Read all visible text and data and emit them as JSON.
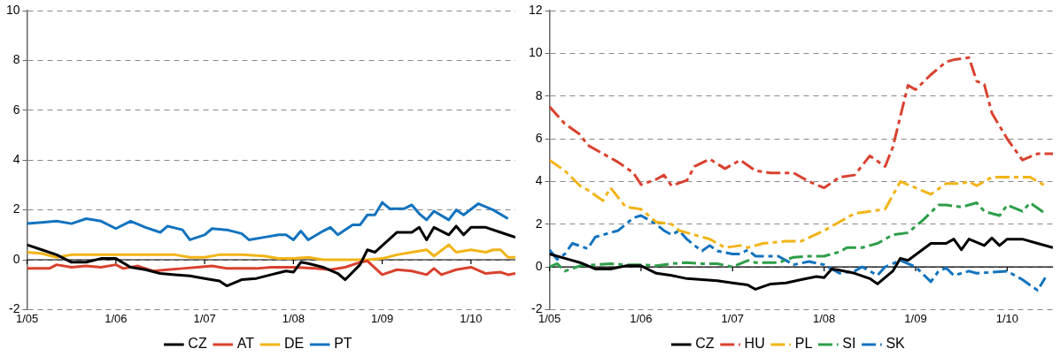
{
  "chart_data": [
    {
      "type": "line",
      "xlim": [
        "2005-01",
        "2010-07"
      ],
      "xticks": [
        {
          "value": "2005-01",
          "label": "1/05"
        },
        {
          "value": "2006-01",
          "label": "1/06"
        },
        {
          "value": "2007-01",
          "label": "1/07"
        },
        {
          "value": "2008-01",
          "label": "1/08"
        },
        {
          "value": "2009-01",
          "label": "1/09"
        },
        {
          "value": "2010-01",
          "label": "1/10"
        }
      ],
      "ylim": [
        -2,
        10
      ],
      "yticks": [
        -2,
        0,
        2,
        4,
        6,
        8,
        10
      ],
      "grid": "y",
      "legend": "bottom",
      "line_style": "solid",
      "marker": "none",
      "ref_lines": [
        {
          "axis": "y",
          "value": 0,
          "color": "#000000"
        }
      ],
      "series": [
        {
          "name": "CZ",
          "color": "#000000",
          "x": [
            "2005-01",
            "2005-03",
            "2005-05",
            "2005-07",
            "2005-09",
            "2005-11",
            "2006-01",
            "2006-03",
            "2006-05",
            "2006-07",
            "2006-09",
            "2006-11",
            "2007-01",
            "2007-03",
            "2007-04",
            "2007-06",
            "2007-08",
            "2007-10",
            "2007-12",
            "2008-01",
            "2008-02",
            "2008-03",
            "2008-05",
            "2008-07",
            "2008-08",
            "2008-10",
            "2008-11",
            "2008-12",
            "2009-03",
            "2009-05",
            "2009-06",
            "2009-07",
            "2009-08",
            "2009-10",
            "2009-11",
            "2009-12",
            "2010-01",
            "2010-03",
            "2010-05",
            "2010-07"
          ],
          "values": [
            0.6,
            0.4,
            0.2,
            -0.1,
            -0.1,
            0.05,
            0.05,
            -0.3,
            -0.4,
            -0.55,
            -0.6,
            -0.65,
            -0.75,
            -0.85,
            -1.05,
            -0.8,
            -0.75,
            -0.6,
            -0.45,
            -0.5,
            -0.1,
            -0.15,
            -0.3,
            -0.55,
            -0.8,
            -0.2,
            0.4,
            0.3,
            1.1,
            1.1,
            1.3,
            0.8,
            1.3,
            1.0,
            1.35,
            1.0,
            1.3,
            1.3,
            1.1,
            0.9
          ]
        },
        {
          "name": "AT",
          "color": "#d9412f",
          "x": [
            "2005-01",
            "2005-04",
            "2005-05",
            "2005-07",
            "2005-09",
            "2005-11",
            "2006-01",
            "2006-02",
            "2006-04",
            "2006-06",
            "2006-08",
            "2006-10",
            "2006-12",
            "2007-02",
            "2007-04",
            "2007-06",
            "2007-08",
            "2007-10",
            "2008-01",
            "2008-04",
            "2008-06",
            "2008-08",
            "2008-10",
            "2008-11",
            "2009-01",
            "2009-03",
            "2009-05",
            "2009-07",
            "2009-08",
            "2009-09",
            "2009-11",
            "2010-01",
            "2010-03",
            "2010-05",
            "2010-06",
            "2010-07"
          ],
          "values": [
            -0.35,
            -0.35,
            -0.2,
            -0.3,
            -0.25,
            -0.3,
            -0.2,
            -0.35,
            -0.25,
            -0.45,
            -0.4,
            -0.35,
            -0.3,
            -0.25,
            -0.35,
            -0.35,
            -0.35,
            -0.3,
            -0.3,
            -0.35,
            -0.4,
            -0.3,
            -0.1,
            -0.05,
            -0.6,
            -0.4,
            -0.45,
            -0.6,
            -0.35,
            -0.6,
            -0.4,
            -0.3,
            -0.55,
            -0.5,
            -0.6,
            -0.55
          ]
        },
        {
          "name": "DE",
          "color": "#f2b417",
          "x": [
            "2005-01",
            "2005-03",
            "2005-05",
            "2005-07",
            "2005-09",
            "2005-11",
            "2006-01",
            "2006-03",
            "2006-05",
            "2006-07",
            "2006-09",
            "2006-11",
            "2007-01",
            "2007-03",
            "2007-06",
            "2007-09",
            "2007-11",
            "2008-01",
            "2008-03",
            "2008-05",
            "2008-07",
            "2008-09",
            "2008-11",
            "2009-01",
            "2009-03",
            "2009-05",
            "2009-07",
            "2009-08",
            "2009-10",
            "2009-11",
            "2010-01",
            "2010-03",
            "2010-04",
            "2010-05",
            "2010-06",
            "2010-07"
          ],
          "values": [
            0.3,
            0.25,
            0.1,
            0.2,
            0.2,
            0.2,
            0.2,
            0.2,
            0.2,
            0.2,
            0.2,
            0.1,
            0.1,
            0.2,
            0.2,
            0.15,
            0.05,
            0.05,
            0.1,
            0,
            0,
            0,
            0,
            0.05,
            0.2,
            0.3,
            0.4,
            0.15,
            0.6,
            0.3,
            0.4,
            0.3,
            0.4,
            0.4,
            0.1,
            0.1
          ]
        },
        {
          "name": "PT",
          "color": "#1273be",
          "x": [
            "2005-01",
            "2005-03",
            "2005-05",
            "2005-07",
            "2005-09",
            "2005-11",
            "2006-01",
            "2006-03",
            "2006-05",
            "2006-07",
            "2006-08",
            "2006-10",
            "2006-11",
            "2007-01",
            "2007-02",
            "2007-04",
            "2007-06",
            "2007-07",
            "2007-09",
            "2007-11",
            "2007-12",
            "2008-01",
            "2008-02",
            "2008-03",
            "2008-05",
            "2008-06",
            "2008-07",
            "2008-09",
            "2008-10",
            "2008-11",
            "2008-12",
            "2009-01",
            "2009-02",
            "2009-04",
            "2009-05",
            "2009-06",
            "2009-07",
            "2009-08",
            "2009-10",
            "2009-11",
            "2009-12",
            "2010-02",
            "2010-04",
            "2010-06"
          ],
          "values": [
            1.45,
            1.5,
            1.55,
            1.45,
            1.65,
            1.55,
            1.25,
            1.55,
            1.3,
            1.1,
            1.35,
            1.2,
            0.8,
            1.0,
            1.25,
            1.2,
            1.05,
            0.8,
            0.9,
            1.0,
            1.0,
            0.8,
            1.15,
            0.8,
            1.15,
            1.3,
            1.0,
            1.4,
            1.4,
            1.8,
            1.8,
            2.3,
            2.05,
            2.05,
            2.2,
            1.85,
            1.6,
            1.95,
            1.6,
            2.0,
            1.8,
            2.25,
            2.0,
            1.65
          ]
        }
      ]
    },
    {
      "type": "line",
      "xlim": [
        "2005-01",
        "2010-07"
      ],
      "xticks": [
        {
          "value": "2005-01",
          "label": "1/05"
        },
        {
          "value": "2006-01",
          "label": "1/06"
        },
        {
          "value": "2007-01",
          "label": "1/07"
        },
        {
          "value": "2008-01",
          "label": "1/08"
        },
        {
          "value": "2009-01",
          "label": "1/09"
        },
        {
          "value": "2010-01",
          "label": "1/10"
        }
      ],
      "ylim": [
        -2,
        12
      ],
      "yticks": [
        -2,
        0,
        2,
        4,
        6,
        8,
        10,
        12
      ],
      "grid": "y",
      "legend": "bottom",
      "marker": "none",
      "ref_lines": [
        {
          "axis": "y",
          "value": 0,
          "color": "#000000"
        }
      ],
      "series": [
        {
          "name": "CZ",
          "color": "#000000",
          "line_style": "solid",
          "x": [
            "2005-01",
            "2005-03",
            "2005-05",
            "2005-07",
            "2005-09",
            "2005-11",
            "2006-01",
            "2006-03",
            "2006-05",
            "2006-07",
            "2006-09",
            "2006-11",
            "2007-01",
            "2007-03",
            "2007-04",
            "2007-06",
            "2007-08",
            "2007-10",
            "2007-12",
            "2008-01",
            "2008-02",
            "2008-03",
            "2008-05",
            "2008-07",
            "2008-08",
            "2008-10",
            "2008-11",
            "2008-12",
            "2009-03",
            "2009-05",
            "2009-06",
            "2009-07",
            "2009-08",
            "2009-10",
            "2009-11",
            "2009-12",
            "2010-01",
            "2010-03",
            "2010-05",
            "2010-07"
          ],
          "values": [
            0.6,
            0.4,
            0.2,
            -0.1,
            -0.1,
            0.05,
            0.05,
            -0.3,
            -0.4,
            -0.55,
            -0.6,
            -0.65,
            -0.75,
            -0.85,
            -1.05,
            -0.8,
            -0.75,
            -0.6,
            -0.45,
            -0.5,
            -0.1,
            -0.15,
            -0.3,
            -0.55,
            -0.8,
            -0.2,
            0.4,
            0.3,
            1.1,
            1.1,
            1.3,
            0.8,
            1.3,
            1.0,
            1.35,
            1.0,
            1.3,
            1.3,
            1.1,
            0.9
          ]
        },
        {
          "name": "HU",
          "color": "#d9412f",
          "line_style": "dashed",
          "x": [
            "2005-01",
            "2005-03",
            "2005-05",
            "2005-06",
            "2005-08",
            "2005-10",
            "2005-12",
            "2006-01",
            "2006-03",
            "2006-04",
            "2006-05",
            "2006-07",
            "2006-08",
            "2006-10",
            "2006-12",
            "2007-02",
            "2007-04",
            "2007-06",
            "2007-09",
            "2007-11",
            "2008-01",
            "2008-03",
            "2008-05",
            "2008-07",
            "2008-09",
            "2008-10",
            "2008-12",
            "2009-01",
            "2009-03",
            "2009-05",
            "2009-06",
            "2009-08",
            "2009-09",
            "2009-10",
            "2009-11",
            "2010-01",
            "2010-03",
            "2010-05",
            "2010-07"
          ],
          "values": [
            7.5,
            6.7,
            6.2,
            5.7,
            5.3,
            4.9,
            4.4,
            3.85,
            4.1,
            4.3,
            3.8,
            4.05,
            4.7,
            5.05,
            4.6,
            5.0,
            4.5,
            4.4,
            4.4,
            4.0,
            3.7,
            4.2,
            4.3,
            5.2,
            4.7,
            5.6,
            8.5,
            8.3,
            9.0,
            9.6,
            9.7,
            9.8,
            8.7,
            8.55,
            7.2,
            6.0,
            5.0,
            5.3,
            5.3
          ]
        },
        {
          "name": "PL",
          "color": "#f2b417",
          "line_style": "dashed",
          "x": [
            "2005-01",
            "2005-03",
            "2005-05",
            "2005-06",
            "2005-08",
            "2005-09",
            "2005-11",
            "2006-01",
            "2006-03",
            "2006-05",
            "2006-06",
            "2006-08",
            "2006-10",
            "2006-12",
            "2007-02",
            "2007-03",
            "2007-05",
            "2007-08",
            "2007-10",
            "2008-01",
            "2008-03",
            "2008-05",
            "2008-07",
            "2008-09",
            "2008-11",
            "2009-01",
            "2009-03",
            "2009-05",
            "2009-07",
            "2009-08",
            "2009-09",
            "2009-11",
            "2010-02",
            "2010-04",
            "2010-06"
          ],
          "values": [
            5.0,
            4.5,
            3.8,
            3.6,
            3.1,
            3.7,
            2.8,
            2.7,
            2.1,
            2.0,
            1.7,
            1.5,
            1.3,
            0.9,
            1.0,
            0.9,
            1.1,
            1.2,
            1.2,
            1.7,
            2.1,
            2.5,
            2.6,
            2.7,
            4.0,
            3.7,
            3.4,
            3.9,
            3.9,
            4.0,
            3.8,
            4.2,
            4.2,
            4.2,
            3.8
          ]
        },
        {
          "name": "SI",
          "color": "#2e9e4a",
          "line_style": "dashed",
          "x": [
            "2005-01",
            "2005-02",
            "2005-03",
            "2005-05",
            "2005-07",
            "2005-09",
            "2005-11",
            "2006-01",
            "2006-03",
            "2006-05",
            "2006-07",
            "2006-09",
            "2006-11",
            "2007-01",
            "2007-03",
            "2007-04",
            "2007-07",
            "2007-09",
            "2007-11",
            "2008-01",
            "2008-03",
            "2008-04",
            "2008-06",
            "2008-08",
            "2008-10",
            "2008-12",
            "2009-02",
            "2009-04",
            "2009-05",
            "2009-07",
            "2009-09",
            "2009-10",
            "2009-12",
            "2010-01",
            "2010-03",
            "2010-04",
            "2010-06"
          ],
          "values": [
            0,
            0.15,
            -0.2,
            0.05,
            0.1,
            0.15,
            0.1,
            0.1,
            0.05,
            0.15,
            0.2,
            0.15,
            0.15,
            0,
            0.3,
            0.2,
            0.2,
            0.45,
            0.5,
            0.5,
            0.7,
            0.9,
            0.9,
            1.1,
            1.5,
            1.6,
            2.2,
            2.9,
            2.9,
            2.8,
            3.0,
            2.6,
            2.4,
            2.9,
            2.6,
            3.0,
            2.5
          ]
        },
        {
          "name": "SK",
          "color": "#1273be",
          "line_style": "dashed",
          "x": [
            "2005-01",
            "2005-02",
            "2005-03",
            "2005-04",
            "2005-06",
            "2005-07",
            "2005-09",
            "2005-10",
            "2005-12",
            "2006-01",
            "2006-02",
            "2006-03",
            "2006-04",
            "2006-05",
            "2006-06",
            "2006-07",
            "2006-08",
            "2006-09",
            "2006-10",
            "2006-11",
            "2007-01",
            "2007-02",
            "2007-03",
            "2007-04",
            "2007-07",
            "2007-09",
            "2007-11",
            "2008-01",
            "2008-03",
            "2008-05",
            "2008-06",
            "2008-08",
            "2008-09",
            "2008-11",
            "2009-01",
            "2009-03",
            "2009-04",
            "2009-05",
            "2009-06",
            "2009-08",
            "2009-09",
            "2010-01",
            "2010-03",
            "2010-05",
            "2010-06"
          ],
          "values": [
            0.8,
            0.35,
            0.6,
            1.1,
            0.85,
            1.4,
            1.6,
            1.7,
            2.3,
            2.4,
            2.2,
            2.0,
            1.7,
            1.5,
            1.7,
            1.3,
            1.0,
            0.75,
            1.0,
            0.75,
            0.6,
            0.6,
            0.8,
            0.5,
            0.5,
            0.1,
            0.25,
            0.1,
            -0.3,
            -0.2,
            0,
            -0.4,
            0,
            0.3,
            0,
            -0.7,
            -0.2,
            -0.05,
            -0.4,
            -0.2,
            -0.3,
            -0.2,
            -0.6,
            -1.1,
            -0.5
          ]
        }
      ]
    }
  ]
}
